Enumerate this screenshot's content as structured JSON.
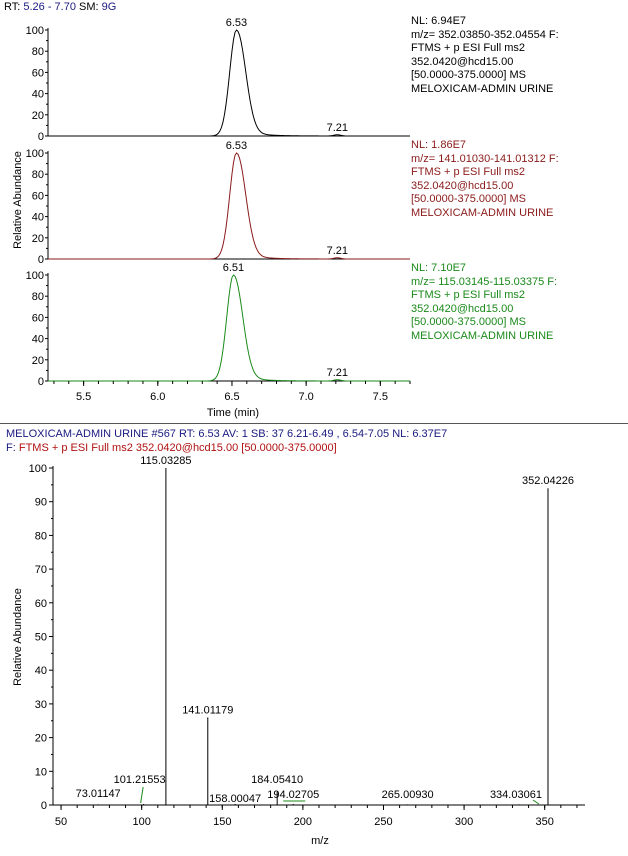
{
  "header": {
    "rt_label": "RT:",
    "rt_value": "5.26 - 7.70",
    "sm_label": "SM:",
    "sm_value": "9G"
  },
  "chromatograms": [
    {
      "color": "#000000",
      "nl": "NL: 6.94E7",
      "info": [
        "m/z= 352.03850-352.04554 F:",
        "FTMS + p ESI Full ms2",
        "352.0420@hcd15.00",
        "[50.0000-375.0000]  MS",
        "MELOXICAM-ADMIN URINE"
      ],
      "peak_label": "6.53",
      "peak_rt": 6.53,
      "minor_label": "7.21",
      "minor_rt": 7.21
    },
    {
      "color": "#8b1a1a",
      "nl": "NL: 1.86E7",
      "info": [
        "m/z= 141.01030-141.01312 F:",
        "FTMS + p ESI Full ms2",
        "352.0420@hcd15.00",
        "[50.0000-375.0000]  MS",
        "MELOXICAM-ADMIN URINE"
      ],
      "peak_label": "6.53",
      "peak_rt": 6.53,
      "minor_label": "7.21",
      "minor_rt": 7.21
    },
    {
      "color": "#1a8a1a",
      "nl": "NL: 7.10E7",
      "info": [
        "m/z= 115.03145-115.03375 F:",
        "FTMS + p ESI Full ms2",
        "352.0420@hcd15.00",
        "[50.0000-375.0000]  MS",
        "MELOXICAM-ADMIN URINE"
      ],
      "peak_label": "6.51",
      "peak_rt": 6.51,
      "minor_label": "7.21",
      "minor_rt": 7.21
    }
  ],
  "chrom_axis": {
    "ylabel": "Relative Abundance",
    "xlabel": "Time (min)",
    "x_ticks": [
      "5.5",
      "6.0",
      "6.5",
      "7.0",
      "7.5"
    ],
    "y_ticks": [
      "0",
      "20",
      "40",
      "60",
      "80",
      "100"
    ]
  },
  "spectrum_header": {
    "line1": "MELOXICAM-ADMIN URINE #567  RT:  6.53  AV:  1  SB:  37  6.21-6.49 , 6.54-7.05  NL:  6.37E7",
    "line2_prefix": "F:",
    "line2_rest": "FTMS + p ESI Full ms2 352.0420@hcd15.00 [50.0000-375.0000]"
  },
  "spectrum_axis": {
    "ylabel": "Relative Abundance",
    "xlabel": "m/z",
    "x_ticks": [
      "50",
      "100",
      "150",
      "200",
      "250",
      "300",
      "350"
    ],
    "y_ticks": [
      "0",
      "10",
      "20",
      "30",
      "40",
      "50",
      "60",
      "70",
      "80",
      "90",
      "100"
    ]
  },
  "chart_data": [
    {
      "type": "line",
      "title": "m/z= 352.03850-352.04554",
      "xlabel": "Time (min)",
      "ylabel": "Relative Abundance",
      "xlim": [
        5.26,
        7.7
      ],
      "ylim": [
        0,
        100
      ],
      "series": [
        {
          "name": "MELOXICAM-ADMIN URINE",
          "x": [
            5.26,
            6.35,
            6.45,
            6.5,
            6.53,
            6.57,
            6.62,
            6.7,
            6.8,
            7.0,
            7.21,
            7.7
          ],
          "y": [
            0,
            1,
            30,
            85,
            100,
            75,
            30,
            8,
            2,
            0.5,
            1,
            0
          ]
        }
      ]
    },
    {
      "type": "line",
      "title": "m/z= 141.01030-141.01312",
      "xlabel": "Time (min)",
      "ylabel": "Relative Abundance",
      "xlim": [
        5.26,
        7.7
      ],
      "ylim": [
        0,
        100
      ],
      "series": [
        {
          "name": "MELOXICAM-ADMIN URINE",
          "x": [
            5.26,
            6.35,
            6.45,
            6.5,
            6.53,
            6.57,
            6.62,
            6.7,
            6.8,
            7.0,
            7.21,
            7.7
          ],
          "y": [
            0,
            1,
            30,
            85,
            100,
            75,
            30,
            8,
            2,
            0.5,
            1,
            0
          ]
        }
      ]
    },
    {
      "type": "line",
      "title": "m/z= 115.03145-115.03375",
      "xlabel": "Time (min)",
      "ylabel": "Relative Abundance",
      "xlim": [
        5.26,
        7.7
      ],
      "ylim": [
        0,
        100
      ],
      "series": [
        {
          "name": "MELOXICAM-ADMIN URINE",
          "x": [
            5.26,
            6.35,
            6.43,
            6.48,
            6.51,
            6.55,
            6.6,
            6.68,
            6.8,
            7.0,
            7.21,
            7.7
          ],
          "y": [
            0,
            1,
            30,
            85,
            100,
            75,
            30,
            8,
            2,
            0.5,
            1,
            0
          ]
        }
      ]
    },
    {
      "type": "bar",
      "title": "MELOXICAM-ADMIN URINE #567",
      "xlabel": "m/z",
      "ylabel": "Relative Abundance",
      "xlim": [
        45,
        375
      ],
      "ylim": [
        0,
        100
      ],
      "peaks": [
        {
          "mz": 73.01147,
          "intensity": 0.2,
          "label": "73.01147"
        },
        {
          "mz": 101.21553,
          "intensity": 0.3,
          "label": "101.21553"
        },
        {
          "mz": 115.03285,
          "intensity": 100,
          "label": "115.03285"
        },
        {
          "mz": 141.01179,
          "intensity": 26,
          "label": "141.01179"
        },
        {
          "mz": 158.00047,
          "intensity": 0.3,
          "label": "158.00047"
        },
        {
          "mz": 184.0541,
          "intensity": 4,
          "label": "184.05410"
        },
        {
          "mz": 194.02705,
          "intensity": 0.3,
          "label": "194.02705"
        },
        {
          "mz": 265.0093,
          "intensity": 0.2,
          "label": "265.00930"
        },
        {
          "mz": 334.03061,
          "intensity": 0.2,
          "label": "334.03061"
        },
        {
          "mz": 352.04226,
          "intensity": 94,
          "label": "352.04226"
        }
      ]
    }
  ]
}
